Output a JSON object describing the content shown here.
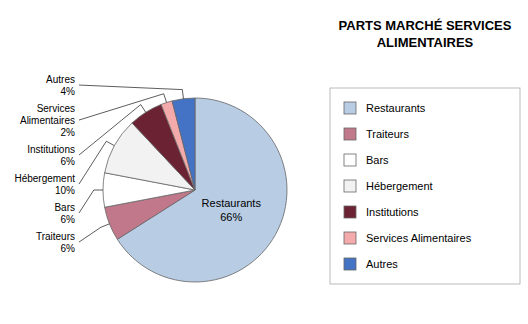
{
  "chart_data": {
    "type": "pie",
    "title": "PARTS MARCHÉ SERVICES\nALIMENTAIRES",
    "categories": [
      "Restaurants",
      "Traiteurs",
      "Bars",
      "Hébergement",
      "Institutions",
      "Services Alimentaires",
      "Autres"
    ],
    "values": [
      66,
      6,
      6,
      10,
      6,
      2,
      4
    ],
    "value_labels": [
      "66%",
      "6%",
      "6%",
      "10%",
      "6%",
      "2%",
      "4%"
    ],
    "colors": [
      "#b8cce4",
      "#c0788a",
      "#ffffff",
      "#f2f2f2",
      "#6b2333",
      "#f4aaaa",
      "#4472c4"
    ],
    "data_labels": true,
    "legend": "right"
  }
}
